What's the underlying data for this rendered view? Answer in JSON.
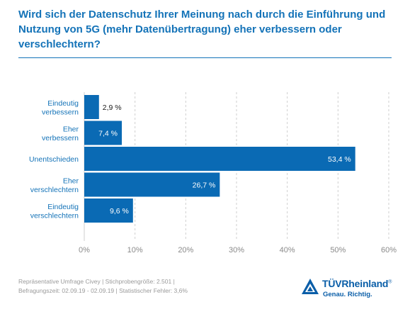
{
  "question_title": "Wird sich der Datenschutz Ihrer Meinung nach durch die Einführung und Nutzung von 5G (mehr Datenübertragung) eher verbessern oder verschlechtern?",
  "colors": {
    "accent": "#1473b8",
    "bar": "#0a6ab4",
    "grid": "#cfcfcf",
    "axis_text": "#8a8a8a",
    "footer_text": "#9a9a9a",
    "logo": "#0a5ea8"
  },
  "chart_data": {
    "type": "bar",
    "orientation": "horizontal",
    "categories": [
      [
        "Eindeutig",
        "verbessern"
      ],
      [
        "Eher",
        "verbessern"
      ],
      [
        "Unentschieden"
      ],
      [
        "Eher",
        "verschlechtern"
      ],
      [
        "Eindeutig",
        "verschlechtern"
      ]
    ],
    "values": [
      2.9,
      7.4,
      53.4,
      26.7,
      9.6
    ],
    "value_labels": [
      "2,9 %",
      "7,4 %",
      "53,4 %",
      "26,7 %",
      "9,6 %"
    ],
    "xlim": [
      0,
      60
    ],
    "xticks": [
      0,
      10,
      20,
      30,
      40,
      50,
      60
    ],
    "xtick_labels": [
      "0%",
      "10%",
      "20%",
      "30%",
      "40%",
      "50%",
      "60%"
    ],
    "grid": "vertical-dashed",
    "legend": "none"
  },
  "footer": {
    "line1": "Repräsentative Umfrage Civey | Stichprobengröße: 2.501 |",
    "line2": "Befragungszeit: 02.09.19 - 02.09.19 | Statistischer Fehler: 3,6%"
  },
  "logo": {
    "name": "TÜVRheinland",
    "registered": "®",
    "tagline": "Genau. Richtig.",
    "icon": "tuv-triangle-logo-icon"
  }
}
